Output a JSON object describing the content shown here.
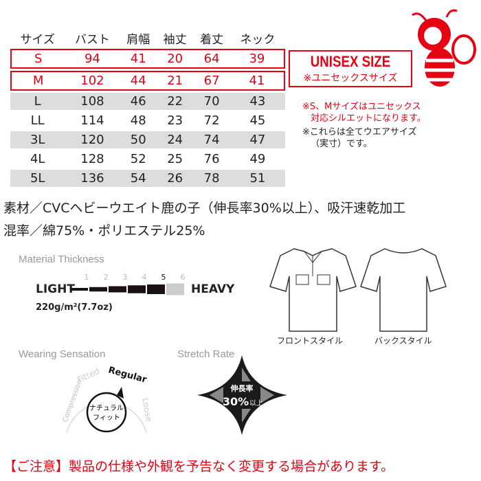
{
  "size_table": {
    "headers": [
      "サイズ",
      "バスト",
      "肩幅",
      "袖丈",
      "着丈",
      "ネック"
    ],
    "rows": [
      [
        "S",
        "94",
        "41",
        "20",
        "64",
        "39"
      ],
      [
        "M",
        "102",
        "44",
        "21",
        "67",
        "41"
      ],
      [
        "L",
        "108",
        "46",
        "22",
        "70",
        "43"
      ],
      [
        "LL",
        "114",
        "48",
        "23",
        "72",
        "45"
      ],
      [
        "3L",
        "120",
        "50",
        "24",
        "74",
        "47"
      ],
      [
        "4L",
        "128",
        "52",
        "25",
        "76",
        "49"
      ],
      [
        "5L",
        "136",
        "54",
        "26",
        "78",
        "51"
      ]
    ]
  },
  "unisex": {
    "title": "UNISEX SIZE",
    "subtitle": "※ユニセックスサイズ"
  },
  "notes": {
    "red": [
      "※S、Mサイズはユニセックス",
      "対応シルエットになります。"
    ],
    "black": [
      "※これらは全てウエアサイズ",
      "（実寸）です。"
    ]
  },
  "material": {
    "line1": "素材／CVCヘビーウエイト鹿の子（伸長率30%以上）、吸汗速乾加工",
    "line2": "混率／綿75%・ポリエステル25%"
  },
  "thickness": {
    "title": "Material Thickness",
    "light": "LIGHT",
    "heavy": "HEAVY",
    "levels": [
      "1",
      "2",
      "3",
      "4",
      "5",
      "6"
    ],
    "selected": 5,
    "weight": "220g/m²(7.7oz)"
  },
  "wearing": {
    "title": "Wearing Sensation",
    "scale": [
      "Compression",
      "Fitted",
      "Regular",
      "Loose"
    ],
    "selected": "Regular",
    "center_line1": "ナチュラル",
    "center_line2": "フィット"
  },
  "stretch": {
    "title": "Stretch Rate",
    "line1": "伸長率",
    "value": "30%",
    "suffix": "以上"
  },
  "front_caption": "フロントスタイル",
  "back_caption": "バックスタイル",
  "disclaimer": "【ご注意】製品の仕様や外観を予告なく変更する場合があります。",
  "colors": {
    "accent": "#e60012",
    "gray_row": "#dddddd"
  }
}
